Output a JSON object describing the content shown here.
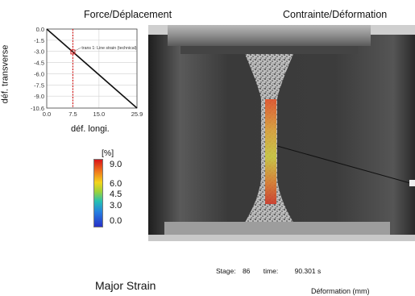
{
  "titles": {
    "left": "Force/Déplacement",
    "right": "Contrainte/Déformation"
  },
  "plot": {
    "ylabel": "déf. transverse",
    "xlabel": "déf. longi.",
    "annotation": "trans 1: Line strain (technical)"
  },
  "chart_data": {
    "type": "line",
    "x": [
      0.0,
      25.9
    ],
    "y": [
      0.0,
      -10.6
    ],
    "xticks": [
      "0.0",
      "7.5",
      "15.0",
      "25.9"
    ],
    "xtick_values": [
      0,
      7.5,
      15,
      25.9
    ],
    "yticks": [
      "0.0",
      "-1.5",
      "-3.0",
      "-4.5",
      "-6.0",
      "-7.5",
      "-9.0",
      "-10.6"
    ],
    "ytick_values": [
      0,
      -1.5,
      -3,
      -4.5,
      -6,
      -7.5,
      -9,
      -10.6
    ],
    "xlim": [
      0,
      25.9
    ],
    "ylim": [
      -10.6,
      0
    ],
    "cursor_x": 7.5,
    "grid": true,
    "series": [
      {
        "name": "trans 1: Line strain (technical)",
        "color": "#111111"
      }
    ],
    "xlabel": "déf. longi.",
    "ylabel": "déf. transverse"
  },
  "legend": {
    "unit": "[%]",
    "values": [
      "9.0",
      "6.0",
      "4.5",
      "3.0",
      "0.0"
    ]
  },
  "stage": {
    "label": "Stage:",
    "value": "86",
    "time_label": "time:",
    "time_value": "90.301 s"
  },
  "bottom": {
    "major": "Major Strain",
    "deformation": "Déformation (mm)"
  },
  "colors": {
    "cursor": "#d62020",
    "plot_line": "#111111",
    "grid": "#d0d0d0"
  }
}
